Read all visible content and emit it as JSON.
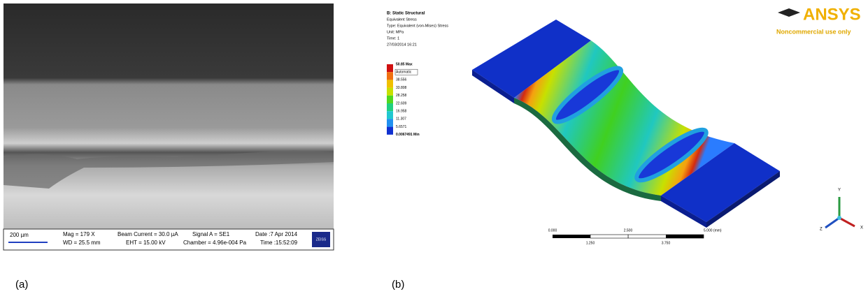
{
  "panel_a": {
    "label": "(a)",
    "scale": "200 µm",
    "info": [
      "Mag =  179 X",
      "WD = 25.5 mm",
      "Beam Current =  30.0 µA",
      "EHT = 15.00 kV",
      "Signal A = SE1",
      "Chamber = 4.96e-004 Pa",
      "Date :7 Apr 2014",
      "Time :15:52:09"
    ],
    "logo": "ZEISS"
  },
  "panel_b": {
    "label": "(b)",
    "header": [
      "B: Static Structural",
      "Equivalent Stress",
      "Type: Equivalent (von-Mises) Stress",
      "Unit: MPa",
      "Time: 1",
      "27/03/2014 16:21"
    ],
    "legend": [
      "50.85 Max",
      "Automatic",
      "38.556",
      "33.808",
      "28.258",
      "22.609",
      "16.958",
      "11.307",
      "5.6571",
      "0.0067491 Min"
    ],
    "logo": "ANSYS",
    "logo_note": "Noncommercial use only",
    "scale_top": [
      "0.000",
      "2.500",
      "5.000 (mm)"
    ],
    "scale_bottom": [
      "1.250",
      "3.750"
    ],
    "axes": [
      "Y",
      "X",
      "Z"
    ]
  }
}
